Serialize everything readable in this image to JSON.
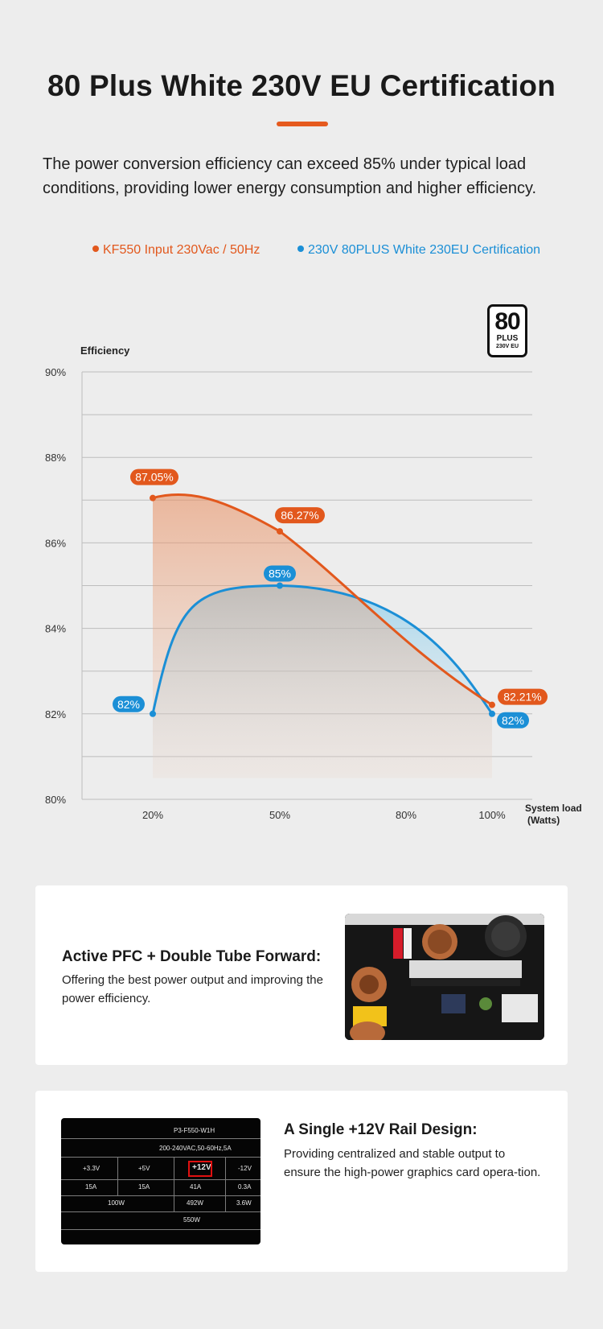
{
  "header": {
    "title": "80 Plus White 230V EU Certification",
    "description": "The power conversion efficiency can exceed 85% under typical load conditions, providing lower energy consumption and higher efficiency."
  },
  "legend": {
    "series_a": "KF550 Input 230Vac / 50Hz",
    "series_b": "230V 80PLUS White 230EU Certification"
  },
  "badge": {
    "number": "80",
    "plus": "PLUS",
    "sub": "230V EU"
  },
  "chart_data": {
    "type": "area",
    "ylabel": "Efficiency",
    "xlabel": "System load (Watts)",
    "xlabel_lines": [
      "System load",
      "(Watts)"
    ],
    "categories": [
      "20%",
      "50%",
      "80%",
      "100%"
    ],
    "y_ticks": [
      "90%",
      "88%",
      "86%",
      "84%",
      "82%",
      "80%"
    ],
    "ylim": [
      80,
      90
    ],
    "grid": true,
    "legend_position": "top",
    "series": [
      {
        "name": "KF550 Input 230Vac / 50Hz",
        "color": "#e2581d",
        "x": [
          20,
          50,
          100
        ],
        "values": [
          87.05,
          86.27,
          82.21
        ],
        "labels": [
          "87.05%",
          "86.27%",
          "82.21%"
        ]
      },
      {
        "name": "230V 80PLUS White 230EU Certification",
        "color": "#1b8fd6",
        "x": [
          20,
          50,
          100
        ],
        "values": [
          82,
          85,
          82
        ],
        "labels": [
          "82%",
          "85%",
          "82%"
        ]
      }
    ]
  },
  "feature1": {
    "heading": "Active PFC + Double Tube Forward:",
    "text": "Offering the best power output and improving the power efficiency."
  },
  "feature2": {
    "heading": "A Single +12V Rail Design:",
    "text": "Providing centralized and stable output to ensure the high-power graphics card opera-tion."
  },
  "psu_label": {
    "model": "P3-F550-W1H",
    "input": "200-240VAC,50-60Hz,5A",
    "rails": [
      "+3.3V",
      "+5V",
      "+12V",
      "-12V"
    ],
    "amps": [
      "15A",
      "15A",
      "41A",
      "0.3A"
    ],
    "combined": "100W",
    "watts_12v": "492W",
    "watts_neg12": "3.6W",
    "total": "550W"
  }
}
